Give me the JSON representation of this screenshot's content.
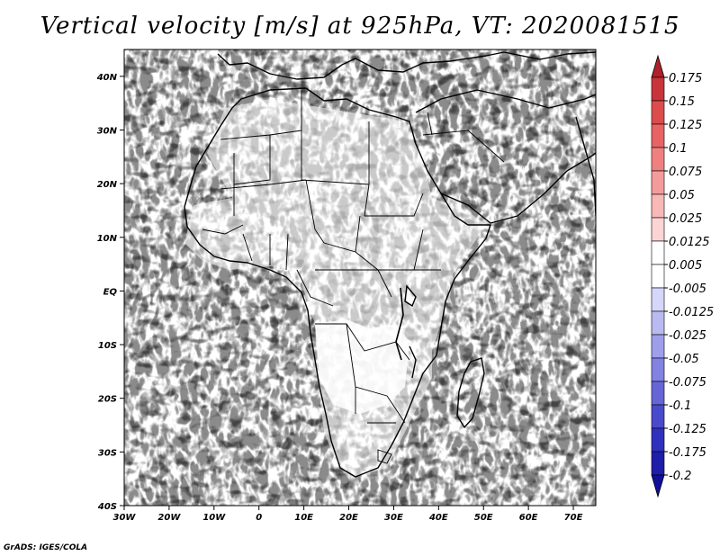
{
  "title": "Vertical velocity [m/s] at 925hPa, VT: 2020081515",
  "credit": "GrADS: IGES/COLA",
  "map": {
    "lon_range": [
      -30,
      75
    ],
    "lat_range": [
      -40,
      45
    ],
    "x_ticks": [
      "30W",
      "20W",
      "10W",
      "0",
      "10E",
      "20E",
      "30E",
      "40E",
      "50E",
      "60E",
      "70E"
    ],
    "y_ticks": [
      "40S",
      "30S",
      "20S",
      "10S",
      "EQ",
      "10N",
      "20N",
      "30N",
      "40N"
    ]
  },
  "colorbar": {
    "levels": [
      "0.175",
      "0.15",
      "0.125",
      "0.1",
      "0.075",
      "0.05",
      "0.025",
      "0.0125",
      "0.005",
      "-0.005",
      "-0.0125",
      "-0.025",
      "-0.05",
      "-0.075",
      "-0.1",
      "-0.125",
      "-0.175",
      "-0.2"
    ],
    "colors": [
      "#b0202a",
      "#c8343a",
      "#dc4c4c",
      "#e86464",
      "#f08080",
      "#f49c9c",
      "#f8b8b8",
      "#fcd4d4",
      "#ffffff",
      "#ffffff",
      "#d6d6fa",
      "#babaf2",
      "#9e9eea",
      "#8282e2",
      "#6666d8",
      "#4a4acc",
      "#3030be",
      "#1e1eaa",
      "#10109a"
    ]
  }
}
